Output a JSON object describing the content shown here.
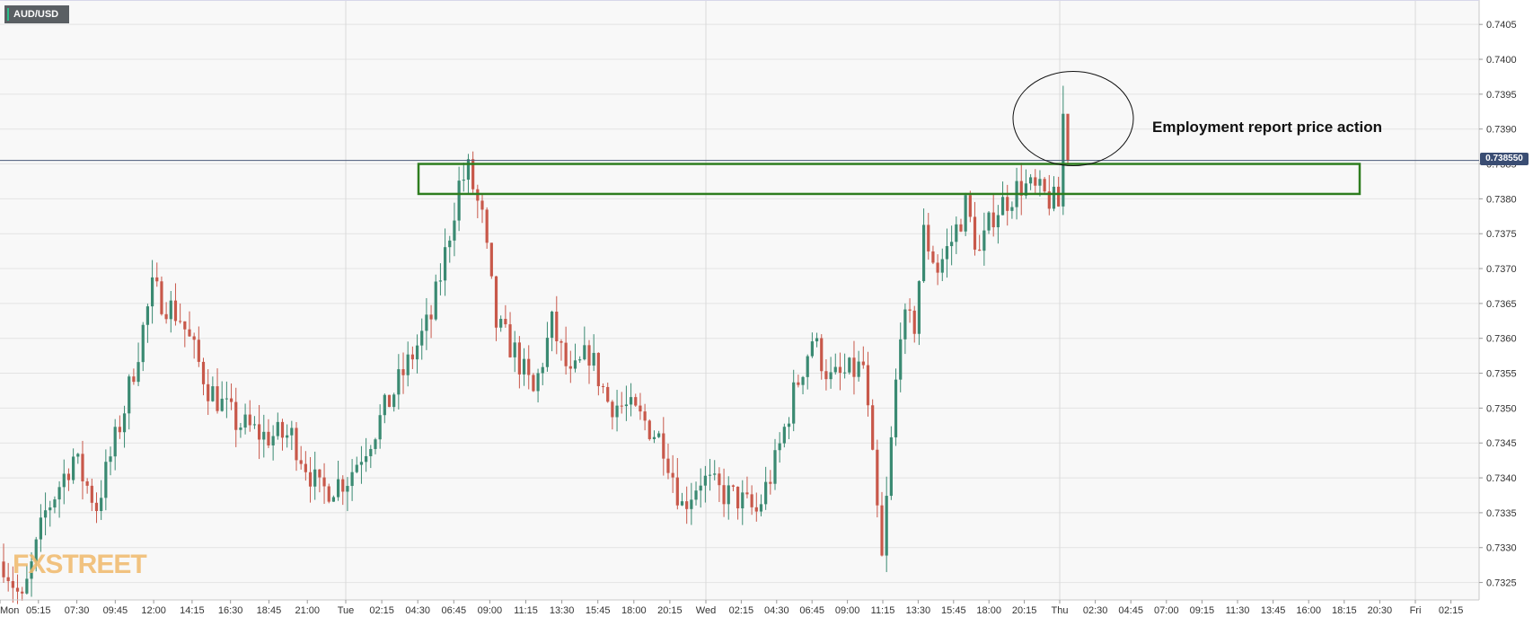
{
  "symbol": "AUD/USD",
  "watermark": "FXSTREET",
  "current_price_label": "0.738550",
  "annotation_text": "Employment report price action",
  "colors": {
    "up": "#3a8a72",
    "down": "#c8584a",
    "resistance_box": "#2e7d1f",
    "price_line": "#4a5a7a",
    "grid": "#e6e6e6",
    "background": "#f8f8f8"
  },
  "chart_data": {
    "type": "candlestick",
    "title": "",
    "y_axis": {
      "range": [
        0.73225,
        0.74085
      ],
      "ticks": [
        "0.7405",
        "0.7400",
        "0.7395",
        "0.7390",
        "0.7385",
        "0.7380",
        "0.7375",
        "0.7370",
        "0.7365",
        "0.7360",
        "0.7355",
        "0.7350",
        "0.7345",
        "0.7340",
        "0.7335",
        "0.7330",
        "0.7325"
      ],
      "position": "right"
    },
    "x_axis": {
      "ticks": [
        "Mon",
        "05:15",
        "07:30",
        "09:45",
        "12:00",
        "14:15",
        "16:30",
        "18:45",
        "21:00",
        "Tue",
        "02:15",
        "04:30",
        "06:45",
        "09:00",
        "11:15",
        "13:30",
        "15:45",
        "18:00",
        "20:15",
        "Wed",
        "02:15",
        "04:30",
        "06:45",
        "09:00",
        "11:15",
        "13:30",
        "15:45",
        "18:00",
        "20:15",
        "Thu",
        "02:30",
        "04:45",
        "07:00",
        "09:15",
        "11:30",
        "13:45",
        "16:00",
        "18:15",
        "20:30",
        "Fri",
        "02:15"
      ],
      "day_separators": [
        "Mon",
        "Tue",
        "Wed",
        "Thu",
        "Fri"
      ]
    },
    "grid": true,
    "current_price": 0.73855,
    "resistance_zone": [
      0.73807,
      0.7385
    ],
    "annotation": {
      "label": "Employment report price action",
      "highlight_range": [
        0.7385,
        0.7396
      ],
      "shape": "ellipse"
    },
    "close_path": [
      {
        "t": 0,
        "p": 0.7328
      },
      {
        "t": 4,
        "p": 0.7322
      },
      {
        "t": 9,
        "p": 0.7335
      },
      {
        "t": 15,
        "p": 0.7343
      },
      {
        "t": 20,
        "p": 0.7336
      },
      {
        "t": 26,
        "p": 0.735
      },
      {
        "t": 32,
        "p": 0.7367
      },
      {
        "t": 38,
        "p": 0.7363
      },
      {
        "t": 44,
        "p": 0.7353
      },
      {
        "t": 50,
        "p": 0.7348
      },
      {
        "t": 56,
        "p": 0.7346
      },
      {
        "t": 62,
        "p": 0.7346
      },
      {
        "t": 68,
        "p": 0.7338
      },
      {
        "t": 74,
        "p": 0.734
      },
      {
        "t": 80,
        "p": 0.7347
      },
      {
        "t": 86,
        "p": 0.7355
      },
      {
        "t": 92,
        "p": 0.7363
      },
      {
        "t": 95,
        "p": 0.7372
      },
      {
        "t": 98,
        "p": 0.7382
      },
      {
        "t": 100,
        "p": 0.7384
      },
      {
        "t": 103,
        "p": 0.7377
      },
      {
        "t": 106,
        "p": 0.7362
      },
      {
        "t": 110,
        "p": 0.7358
      },
      {
        "t": 114,
        "p": 0.7352
      },
      {
        "t": 118,
        "p": 0.7362
      },
      {
        "t": 122,
        "p": 0.7354
      },
      {
        "t": 126,
        "p": 0.7358
      },
      {
        "t": 130,
        "p": 0.7351
      },
      {
        "t": 134,
        "p": 0.735
      },
      {
        "t": 138,
        "p": 0.7348
      },
      {
        "t": 142,
        "p": 0.7345
      },
      {
        "t": 146,
        "p": 0.7336
      },
      {
        "t": 150,
        "p": 0.734
      },
      {
        "t": 154,
        "p": 0.7338
      },
      {
        "t": 158,
        "p": 0.7337
      },
      {
        "t": 162,
        "p": 0.7335
      },
      {
        "t": 166,
        "p": 0.7342
      },
      {
        "t": 170,
        "p": 0.7352
      },
      {
        "t": 174,
        "p": 0.736
      },
      {
        "t": 178,
        "p": 0.7354
      },
      {
        "t": 182,
        "p": 0.7355
      },
      {
        "t": 185,
        "p": 0.7356
      },
      {
        "t": 187,
        "p": 0.7342
      },
      {
        "t": 189,
        "p": 0.7328
      },
      {
        "t": 191,
        "p": 0.7345
      },
      {
        "t": 193,
        "p": 0.7362
      },
      {
        "t": 196,
        "p": 0.7362
      },
      {
        "t": 198,
        "p": 0.7375
      },
      {
        "t": 201,
        "p": 0.737
      },
      {
        "t": 204,
        "p": 0.7374
      },
      {
        "t": 207,
        "p": 0.7379
      },
      {
        "t": 210,
        "p": 0.7372
      },
      {
        "t": 213,
        "p": 0.7378
      },
      {
        "t": 216,
        "p": 0.738
      },
      {
        "t": 219,
        "p": 0.7382
      },
      {
        "t": 222,
        "p": 0.7381
      },
      {
        "t": 225,
        "p": 0.738
      },
      {
        "t": 227,
        "p": 0.7379
      },
      {
        "t": 228,
        "p": 0.7392
      },
      {
        "t": 229,
        "p": 0.7386
      }
    ]
  }
}
